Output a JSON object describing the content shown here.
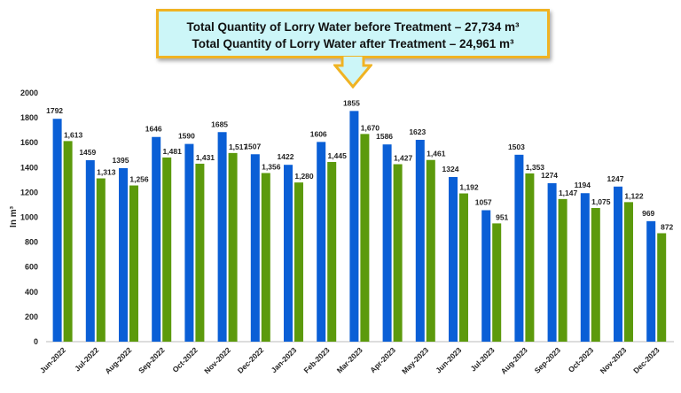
{
  "callout": {
    "line1": "Total Quantity of Lorry Water before Treatment – 27,734 m³",
    "line2": "Total Quantity of Lorry Water after Treatment – 24,961 m³"
  },
  "chart_data": {
    "type": "bar",
    "title": "",
    "xlabel": "",
    "ylabel": "In m³",
    "ylim": [
      0,
      2000
    ],
    "yticks": [
      0,
      200,
      400,
      600,
      800,
      1000,
      1200,
      1400,
      1600,
      1800,
      2000
    ],
    "grid": false,
    "categories": [
      "Jun-2022",
      "Jul-2022",
      "Aug-2022",
      "Sep-2022",
      "Oct-2022",
      "Nov-2022",
      "Dec-2022",
      "Jan-2023",
      "Feb-2023",
      "Mar-2023",
      "Apr-2023",
      "May-2023",
      "Jun-2023",
      "Jul-2023",
      "Aug-2023",
      "Sep-2023",
      "Oct-2023",
      "Nov-2023",
      "Dec-2023"
    ],
    "series": [
      {
        "color": "#0a5fd6",
        "values": [
          1792,
          1459,
          1395,
          1646,
          1590,
          1685,
          1507,
          1422,
          1606,
          1855,
          1586,
          1623,
          1324,
          1057,
          1503,
          1274,
          1194,
          1247,
          969
        ],
        "labels": [
          "1792",
          "1459",
          "1395",
          "1646",
          "1590",
          "1685",
          "1507",
          "1422",
          "1606",
          "1855",
          "1586",
          "1623",
          "1324",
          "1057",
          "1503",
          "1274",
          "1194",
          "1247",
          "969"
        ]
      },
      {
        "color": "#5c9a0c",
        "values": [
          1613,
          1313,
          1256,
          1481,
          1431,
          1517,
          1356,
          1280,
          1445,
          1670,
          1427,
          1461,
          1192,
          951,
          1353,
          1147,
          1075,
          1122,
          872
        ],
        "labels": [
          "1,613",
          "1,313",
          "1,256",
          "1,481",
          "1,431",
          "1,517",
          "1,356",
          "1,280",
          "1,445",
          "1,670",
          "1,427",
          "1,461",
          "1,192",
          "951",
          "1,353",
          "1,147",
          "1,075",
          "1,122",
          "872"
        ]
      }
    ]
  }
}
